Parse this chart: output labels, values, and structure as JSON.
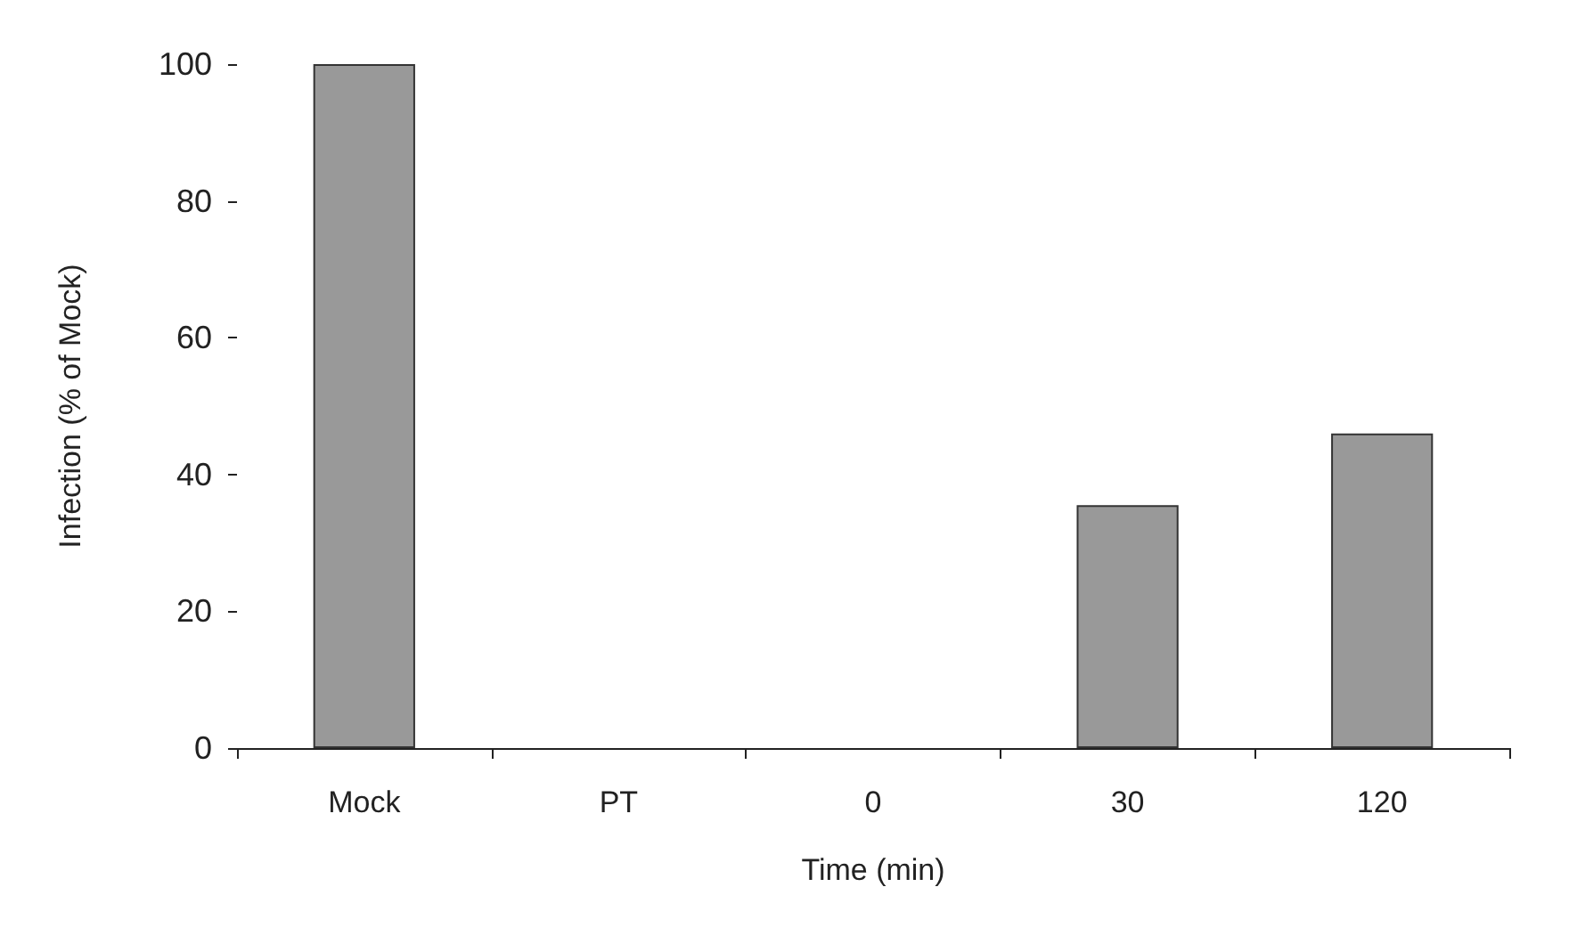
{
  "chart_data": {
    "type": "bar",
    "xlabel": "Time (min)",
    "ylabel": "Infection (% of Mock)",
    "categories": [
      "Mock",
      "PT",
      "0",
      "30",
      "120"
    ],
    "values": [
      100,
      0,
      0,
      35.5,
      46
    ],
    "color": "#999999",
    "ylim": [
      0,
      100
    ],
    "yticks": [
      0,
      20,
      40,
      60,
      80,
      100
    ],
    "grid": false
  }
}
